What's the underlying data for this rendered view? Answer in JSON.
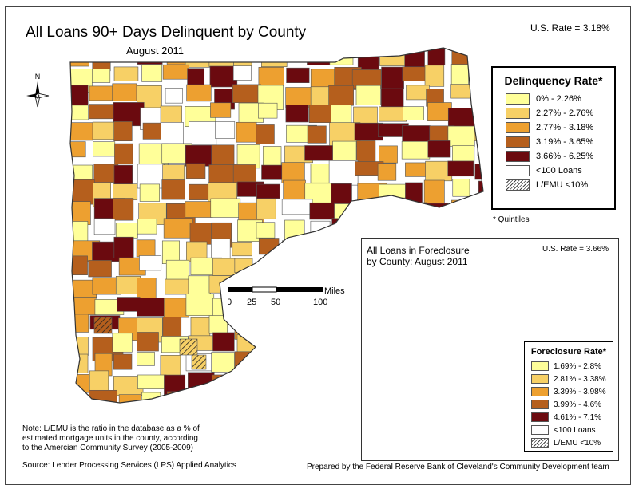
{
  "title": "All Loans 90+ Days Delinquent by County",
  "subtitle": "August 2011",
  "us_rate": "U.S. Rate = 3.18%",
  "north_label": "N",
  "colors": {
    "q1": "#ffff99",
    "q2": "#f7d066",
    "q3": "#eda030",
    "q4": "#b55f1d",
    "q5": "#6b0a0f",
    "low_loans": "#ffffff",
    "border": "#555555"
  },
  "legend": {
    "title": "Delinquency Rate*",
    "items": [
      {
        "label": "0% - 2.26%",
        "color": "#ffff99"
      },
      {
        "label": "2.27% - 2.76%",
        "color": "#f7d066"
      },
      {
        "label": "2.77% - 3.18%",
        "color": "#eda030"
      },
      {
        "label": "3.19% - 3.65%",
        "color": "#b55f1d"
      },
      {
        "label": "3.66% - 6.25%",
        "color": "#6b0a0f"
      },
      {
        "label": "<100 Loans",
        "color": "#ffffff"
      }
    ],
    "hatch_label": "L/EMU <10%",
    "footnote": "* Quintiles"
  },
  "scale": {
    "unit": "Miles",
    "ticks": [
      "0",
      "25",
      "50",
      "100"
    ]
  },
  "inset": {
    "title_line1": "All Loans in Foreclosure",
    "title_line2": "by County: August 2011",
    "us_rate": "U.S. Rate = 3.66%",
    "legend": {
      "title": "Foreclosure Rate*",
      "items": [
        {
          "label": "1.69% - 2.8%",
          "color": "#ffff99"
        },
        {
          "label": "2.81% - 3.38%",
          "color": "#f7d066"
        },
        {
          "label": "3.39% - 3.98%",
          "color": "#eda030"
        },
        {
          "label": "3.99% - 4.6%",
          "color": "#b55f1d"
        },
        {
          "label": "4.61% - 7.1%",
          "color": "#6b0a0f"
        },
        {
          "label": "<100 Loans",
          "color": "#ffffff"
        }
      ],
      "hatch_label": "L/EMU <10%"
    }
  },
  "note": {
    "line1": "Note: L/EMU is the ratio in the database as a % of",
    "line2": "estimated mortgage units in the county, according",
    "line3": "to the Amercian Community Survey (2005-2009)"
  },
  "source": "Source: Lender Processing Services (LPS) Applied Analytics",
  "prepared_by": "Prepared by the Federal Reserve Bank of Cleveland's Community Development team"
}
